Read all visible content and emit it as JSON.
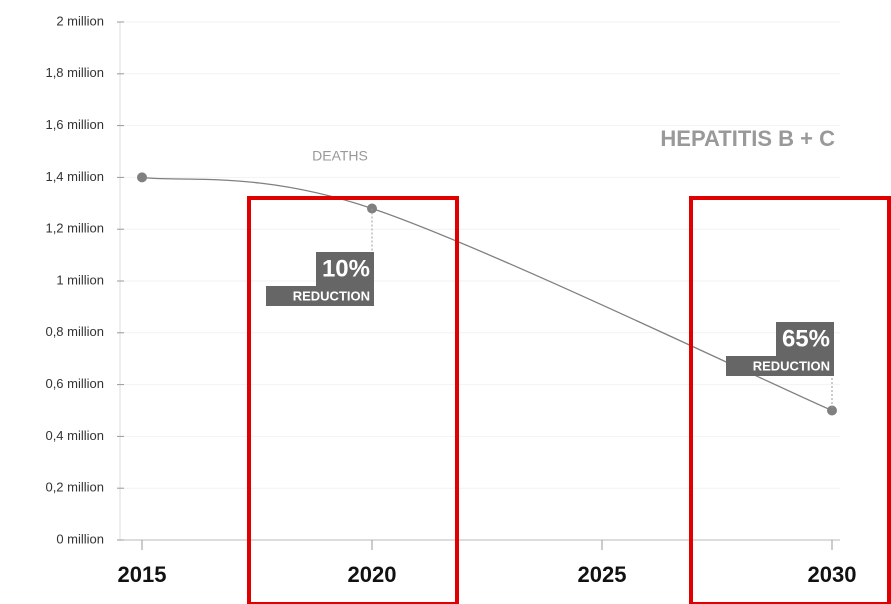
{
  "chart_data": {
    "type": "line",
    "title": "HEPATITIS B + C",
    "series_label": "DEATHS",
    "x": [
      2015,
      2020,
      2030
    ],
    "values": [
      1.4,
      1.28,
      0.5
    ],
    "color": "#808080",
    "xlim": [
      2015,
      2030
    ],
    "xticks": [
      2015,
      2020,
      2025,
      2030
    ],
    "ylim": [
      0,
      2
    ],
    "yticks": [
      {
        "value": 0,
        "label": "0 million"
      },
      {
        "value": 0.2,
        "label": "0,2 million"
      },
      {
        "value": 0.4,
        "label": "0,4 million"
      },
      {
        "value": 0.6,
        "label": "0,6 million"
      },
      {
        "value": 0.8,
        "label": "0,8 million"
      },
      {
        "value": 1,
        "label": "1 million"
      },
      {
        "value": 1.2,
        "label": "1,2 million"
      },
      {
        "value": 1.4,
        "label": "1,4 million"
      },
      {
        "value": 1.6,
        "label": "1,6 million"
      },
      {
        "value": 1.8,
        "label": "1,8 million"
      },
      {
        "value": 2,
        "label": "2 million"
      }
    ],
    "annotations": [
      {
        "label": "10%",
        "text": "REDUCTION"
      },
      {
        "label": "65%",
        "text": "REDUCTION"
      }
    ],
    "grid": true
  }
}
